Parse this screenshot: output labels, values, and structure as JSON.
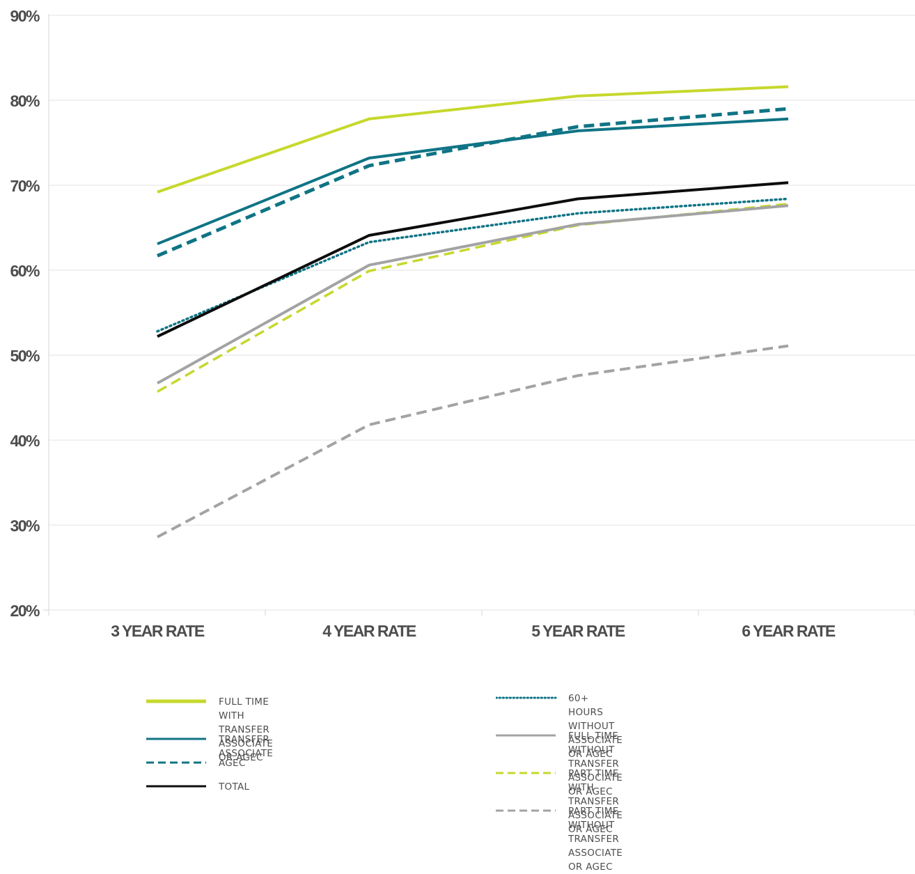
{
  "chart_data": {
    "type": "line",
    "categories": [
      "3 YEAR RATE",
      "4 YEAR RATE",
      "5 YEAR RATE",
      "6 YEAR RATE"
    ],
    "y_ticks": [
      "90%",
      "80%",
      "70%",
      "60%",
      "50%",
      "40%",
      "30%",
      "20%"
    ],
    "ylim": [
      20,
      90
    ],
    "grid": "horizontal",
    "legend_position": "bottom",
    "series": [
      {
        "name": [
          "FULL TIME",
          "WITH TRANSFER ASSOCIATE OR AGEC"
        ],
        "values": [
          69.2,
          77.8,
          80.5,
          81.6
        ],
        "color": "#c6d82c",
        "style": "solid",
        "width": 4
      },
      {
        "name": [
          "TRANSFER ASSOCIATE"
        ],
        "values": [
          63.1,
          73.2,
          76.4,
          77.8
        ],
        "color": "#0f7485",
        "style": "solid",
        "width": 4
      },
      {
        "name": [
          "AGEC"
        ],
        "values": [
          61.7,
          72.3,
          76.9,
          79.0
        ],
        "color": "#0f7485",
        "style": "dashed",
        "width": 5
      },
      {
        "name": [
          "TOTAL"
        ],
        "values": [
          52.2,
          64.1,
          68.4,
          70.3
        ],
        "color": "#0d0d0d",
        "style": "solid",
        "width": 4
      },
      {
        "name": [
          "60+ HOURS",
          "WITHOUT ASSOCIATE OR AGEC"
        ],
        "values": [
          52.8,
          63.3,
          66.7,
          68.4
        ],
        "color": "#0f7485",
        "style": "dotted",
        "width": 3.5
      },
      {
        "name": [
          "FULL TIME",
          "WITHOUT TRANSFER ASSOCIATE OR AGEC"
        ],
        "values": [
          46.7,
          60.6,
          65.4,
          67.6
        ],
        "color": "#a3a3a3",
        "style": "solid",
        "width": 4
      },
      {
        "name": [
          "PART TIME",
          "WITH TRANSFER ASSOCIATE OR AGEC"
        ],
        "values": [
          45.7,
          59.9,
          65.3,
          67.8
        ],
        "color": "#c6d82c",
        "style": "dashed",
        "width": 3.5
      },
      {
        "name": [
          "PART TIME",
          "WITHOUT TRANSFER ASSOCIATE OR AGEC"
        ],
        "values": [
          28.6,
          41.8,
          47.6,
          51.1
        ],
        "color": "#a3a3a3",
        "style": "dashed",
        "width": 4
      }
    ]
  }
}
